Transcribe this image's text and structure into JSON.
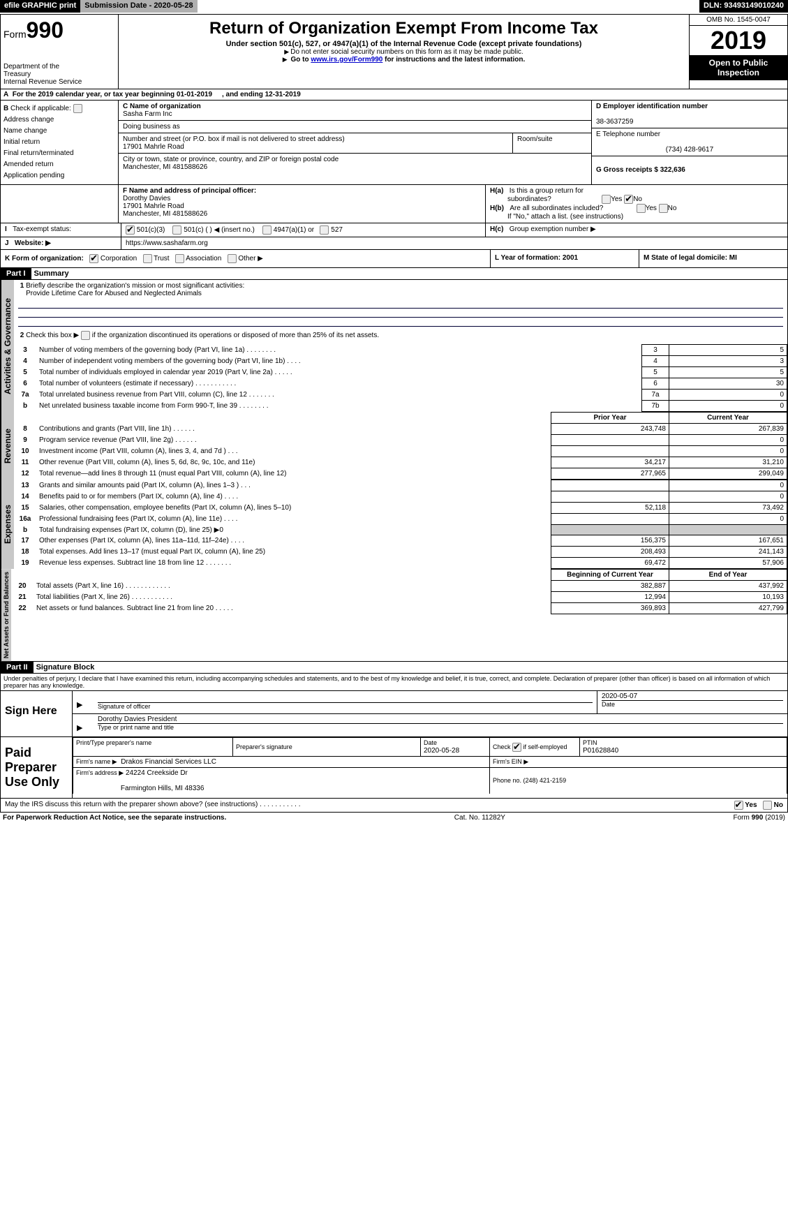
{
  "topstrip": {
    "efile": "efile GRAPHIC print",
    "submission_label": "Submission Date - 2020-05-28",
    "dln_label": "DLN: 93493149010240"
  },
  "header": {
    "form_prefix": "Form",
    "form_number": "990",
    "dept1": "Department of the",
    "dept2": "Treasury",
    "dept3": "Internal Revenue Service",
    "title": "Return of Organization Exempt From Income Tax",
    "subtitle": "Under section 501(c), 527, or 4947(a)(1) of the Internal Revenue Code (except private foundations)",
    "note1": "Do not enter social security numbers on this form as it may be made public.",
    "note2_prefix": "Go to ",
    "note2_link": "www.irs.gov/Form990",
    "note2_suffix": " for instructions and the latest information.",
    "omb": "OMB No. 1545-0047",
    "year": "2019",
    "open": "Open to Public Inspection"
  },
  "row_a": {
    "label": "For the 2019 calendar year, or tax year beginning 01-01-2019",
    "mid": ", and ending 12-31-2019"
  },
  "col_b": {
    "header": "Check if applicable:",
    "items": [
      "Address change",
      "Name change",
      "Initial return",
      "Final return/terminated",
      "Amended return",
      "Application pending"
    ]
  },
  "col_c": {
    "name_label": "C Name of organization",
    "name": "Sasha Farm Inc",
    "dba_label": "Doing business as",
    "street_label": "Number and street (or P.O. box if mail is not delivered to street address)",
    "room_label": "Room/suite",
    "street": "17901 Mahrle Road",
    "city_label": "City or town, state or province, country, and ZIP or foreign postal code",
    "city": "Manchester, MI  481588626",
    "f_label": "F Name and address of principal officer:",
    "f_name": "Dorothy Davies",
    "f_street": "17901 Mahrle Road",
    "f_city": "Manchester, MI  481588626"
  },
  "col_d": {
    "d_label": "D Employer identification number",
    "d_val": "38-3637259",
    "e_label": "E Telephone number",
    "e_val": "(734) 428-9617",
    "g_label": "G Gross receipts $ 322,636"
  },
  "col_h": {
    "ha_label": "Is this a group return for",
    "ha_label2": "subordinates?",
    "hb_label": "Are all subordinates included?",
    "hb_note": "If \"No,\" attach a list. (see instructions)",
    "hc_label": "Group exemption number ▶",
    "yes": "Yes",
    "no": "No"
  },
  "row_i": {
    "label": "Tax-exempt status:",
    "o1": "501(c)(3)",
    "o2_a": "501(c) (   )",
    "o2_b": "(insert no.)",
    "o3": "4947(a)(1) or",
    "o4": "527"
  },
  "row_j": {
    "label": "Website: ▶",
    "val": "https://www.sashafarm.org"
  },
  "row_k": {
    "label": "K Form of organization:",
    "o1": "Corporation",
    "o2": "Trust",
    "o3": "Association",
    "o4": "Other ▶",
    "l_label": "L Year of formation: 2001",
    "m_label": "M State of legal domicile: MI"
  },
  "part1": {
    "hdr": "Part I",
    "title": "Summary"
  },
  "summary": {
    "l1_label": "Briefly describe the organization's mission or most significant activities:",
    "l1_val": "Provide Lifetime Care for Abused and Neglected Animals",
    "l2_label": "Check this box ▶         if the organization discontinued its operations or disposed of more than 25% of its net assets.",
    "rows_ag": [
      {
        "n": "3",
        "t": "Number of voting members of the governing body (Part VI, line 1a)   .     .     .     .     .     .     .     .",
        "rn": "3",
        "v": "5"
      },
      {
        "n": "4",
        "t": "Number of independent voting members of the governing body (Part VI, line 1b)   .     .     .     .",
        "rn": "4",
        "v": "3"
      },
      {
        "n": "5",
        "t": "Total number of individuals employed in calendar year 2019 (Part V, line 2a)   .     .     .     .     .",
        "rn": "5",
        "v": "5"
      },
      {
        "n": "6",
        "t": "Total number of volunteers (estimate if necessary)   .     .     .     .     .     .     .     .     .     .     .",
        "rn": "6",
        "v": "30"
      },
      {
        "n": "7a",
        "t": "Total unrelated business revenue from Part VIII, column (C), line 12   .     .     .     .     .     .     .",
        "rn": "7a",
        "v": "0"
      },
      {
        "n": "b",
        "t": "Net unrelated business taxable income from Form 990-T, line 39   .     .     .     .     .     .     .     .",
        "rn": "7b",
        "v": "0"
      }
    ],
    "col_prior": "Prior Year",
    "col_current": "Current Year",
    "rows_rev": [
      {
        "n": "8",
        "t": "Contributions and grants (Part VIII, line 1h)   .     .     .     .     .     .",
        "p": "243,748",
        "c": "267,839"
      },
      {
        "n": "9",
        "t": "Program service revenue (Part VIII, line 2g)   .     .     .     .     .     .",
        "p": "",
        "c": "0"
      },
      {
        "n": "10",
        "t": "Investment income (Part VIII, column (A), lines 3, 4, and 7d )   .     .     .",
        "p": "",
        "c": "0"
      },
      {
        "n": "11",
        "t": "Other revenue (Part VIII, column (A), lines 5, 6d, 8c, 9c, 10c, and 11e)",
        "p": "34,217",
        "c": "31,210"
      },
      {
        "n": "12",
        "t": "Total revenue—add lines 8 through 11 (must equal Part VIII, column (A), line 12)",
        "p": "277,965",
        "c": "299,049"
      }
    ],
    "rows_exp": [
      {
        "n": "13",
        "t": "Grants and similar amounts paid (Part IX, column (A), lines 1–3 )   .     .     .",
        "p": "",
        "c": "0"
      },
      {
        "n": "14",
        "t": "Benefits paid to or for members (Part IX, column (A), line 4)   .     .     .     .",
        "p": "",
        "c": "0"
      },
      {
        "n": "15",
        "t": "Salaries, other compensation, employee benefits (Part IX, column (A), lines 5–10)",
        "p": "52,118",
        "c": "73,492"
      },
      {
        "n": "16a",
        "t": "Professional fundraising fees (Part IX, column (A), line 11e)   .     .     .     .",
        "p": "",
        "c": "0"
      },
      {
        "n": "b",
        "t": "Total fundraising expenses (Part IX, column (D), line 25) ▶0",
        "p": "GREY",
        "c": "GREY"
      },
      {
        "n": "17",
        "t": "Other expenses (Part IX, column (A), lines 11a–11d, 11f–24e)   .     .     .     .",
        "p": "156,375",
        "c": "167,651"
      },
      {
        "n": "18",
        "t": "Total expenses. Add lines 13–17 (must equal Part IX, column (A), line 25)",
        "p": "208,493",
        "c": "241,143"
      },
      {
        "n": "19",
        "t": "Revenue less expenses. Subtract line 18 from line 12   .     .     .     .     .     .     .",
        "p": "69,472",
        "c": "57,906"
      }
    ],
    "col_begin": "Beginning of Current Year",
    "col_end": "End of Year",
    "rows_na": [
      {
        "n": "20",
        "t": "Total assets (Part X, line 16)   .     .     .     .     .     .     .     .     .     .     .     .",
        "p": "382,887",
        "c": "437,992"
      },
      {
        "n": "21",
        "t": "Total liabilities (Part X, line 26)   .     .     .     .     .     .     .     .     .     .     .",
        "p": "12,994",
        "c": "10,193"
      },
      {
        "n": "22",
        "t": "Net assets or fund balances. Subtract line 21 from line 20   .     .     .     .     .",
        "p": "369,893",
        "c": "427,799"
      }
    ]
  },
  "vtabs": {
    "ag": "Activities & Governance",
    "rev": "Revenue",
    "exp": "Expenses",
    "na": "Net Assets or Fund Balances"
  },
  "part2": {
    "hdr": "Part II",
    "title": "Signature Block",
    "perjury": "Under penalties of perjury, I declare that I have examined this return, including accompanying schedules and statements, and to the best of my knowledge and belief, it is true, correct, and complete. Declaration of preparer (other than officer) is based on all information of which preparer has any knowledge."
  },
  "sign": {
    "here": "Sign Here",
    "sig_officer": "Signature of officer",
    "date_label": "Date",
    "date_val": "2020-05-07",
    "name": "Dorothy Davies  President",
    "name_label": "Type or print name and title"
  },
  "paid": {
    "left": "Paid Preparer Use Only",
    "r1c1": "Print/Type preparer's name",
    "r1c2": "Preparer's signature",
    "r1c3_label": "Date",
    "r1c3_val": "2020-05-28",
    "r1c4_label": "Check          if self-employed",
    "r1c5_label": "PTIN",
    "r1c5_val": "P01628840",
    "r2_label": "Firm's name     ▶",
    "r2_val": "Drakos Financial Services LLC",
    "r2_ein": "Firm's EIN ▶",
    "r3_label": "Firm's address ▶",
    "r3_val1": "24224 Creekside Dr",
    "r3_val2": "Farmington Hills, MI  48336",
    "r3_phone": "Phone no. (248) 421-2159"
  },
  "footer": {
    "discuss": "May the IRS discuss this return with the preparer shown above? (see instructions)   .     .     .     .     .     .     .     .     .     .     .",
    "yes": "Yes",
    "no": "No",
    "pra": "For Paperwork Reduction Act Notice, see the separate instructions.",
    "cat": "Cat. No. 11282Y",
    "form": "Form 990 (2019)"
  }
}
